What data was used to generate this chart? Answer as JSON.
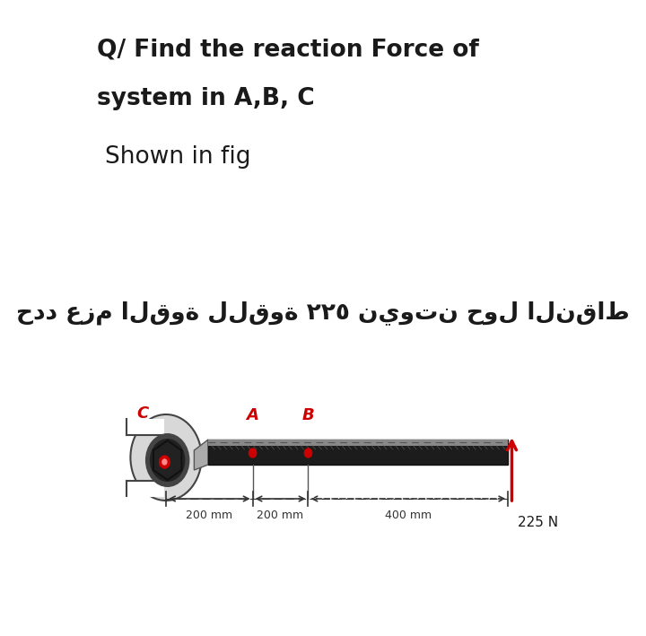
{
  "title_line1": "Q/ Find the reaction Force of",
  "title_line2": "system in A,B, C",
  "subtitle": "Shown in fig",
  "arabic_text": "حدد عزم القوة للقوة ٢٢٥ نيوتن حول النقاط",
  "bg_color": "#ffffff",
  "text_color": "#1a1a1a",
  "label_A": "A",
  "label_B": "B",
  "label_C": "C",
  "dim1": "200 mm",
  "dim2": "200 mm",
  "dim3": "400 mm",
  "force_label": "225 N",
  "force_color": "#cc0000",
  "dot_color": "#cc0000",
  "label_color": "#cc0000"
}
